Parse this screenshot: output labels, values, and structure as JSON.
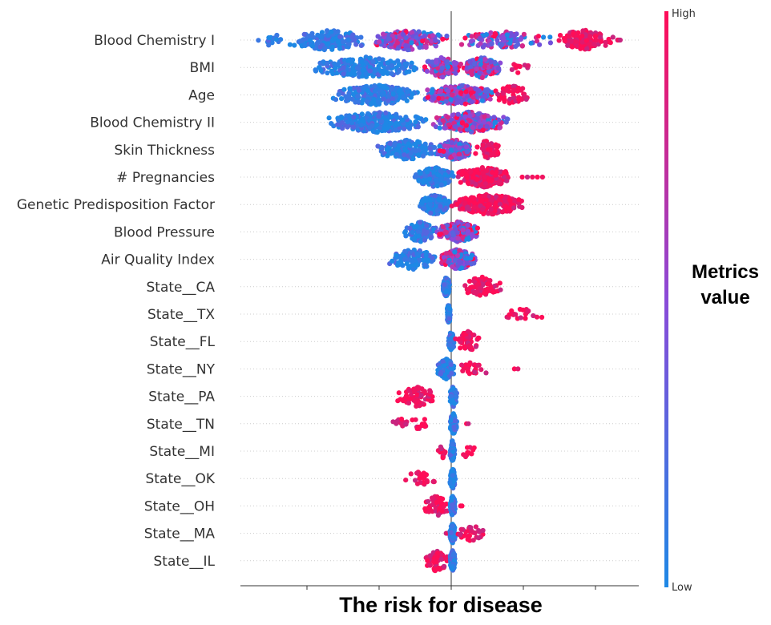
{
  "chart_data": {
    "type": "scatter",
    "subtype": "shap-beeswarm",
    "xlabel": "The risk for disease",
    "grid": "horizontal dotted rows",
    "zero_line": true,
    "colorbar": {
      "title": "Metrics value",
      "high_label": "High",
      "low_label": "Low",
      "low_color": "#1e88e5",
      "high_color": "#ff0d57"
    },
    "features": [
      {
        "name": "Blood Chemistry I",
        "clusters": [
          [
            -2.68,
            -2.3,
            "low",
            14
          ],
          [
            -2.3,
            -1.1,
            "low",
            150
          ],
          [
            -1.1,
            -0.05,
            "mid",
            220
          ],
          [
            0.0,
            1.4,
            "mid",
            120
          ],
          [
            1.4,
            2.3,
            "high",
            110
          ],
          [
            2.3,
            2.35,
            "high",
            4
          ]
        ]
      },
      {
        "name": "BMI",
        "clusters": [
          [
            -1.96,
            -0.4,
            "low",
            230
          ],
          [
            -0.4,
            0.15,
            "mid",
            110
          ],
          [
            0.15,
            0.7,
            "mid",
            170
          ],
          [
            0.8,
            1.1,
            "high",
            10
          ]
        ]
      },
      {
        "name": "Age",
        "clusters": [
          [
            -1.65,
            -0.4,
            "low",
            240
          ],
          [
            -0.4,
            0.6,
            "mid",
            250
          ],
          [
            0.6,
            1.1,
            "high",
            60
          ]
        ]
      },
      {
        "name": "Blood Chemistry II",
        "clusters": [
          [
            -1.73,
            -0.3,
            "low",
            260
          ],
          [
            -0.3,
            0.8,
            "mid",
            260
          ]
        ]
      },
      {
        "name": "Skin Thickness",
        "clusters": [
          [
            -1.02,
            -0.2,
            "low",
            140
          ],
          [
            -0.2,
            0.3,
            "mid",
            150
          ],
          [
            0.3,
            0.7,
            "high",
            40
          ]
        ]
      },
      {
        "name": "# Pregnancies",
        "clusters": [
          [
            -0.52,
            0.05,
            "low",
            180
          ],
          [
            0.05,
            0.85,
            "high",
            200
          ],
          [
            0.95,
            1.3,
            "high",
            5
          ]
        ]
      },
      {
        "name": "Genetic Predisposition Factor",
        "clusters": [
          [
            -0.45,
            0.0,
            "low",
            190
          ],
          [
            0.0,
            1.05,
            "high",
            230
          ]
        ]
      },
      {
        "name": "Blood Pressure",
        "clusters": [
          [
            -0.67,
            -0.2,
            "low",
            100
          ],
          [
            -0.2,
            0.4,
            "mid",
            230
          ]
        ]
      },
      {
        "name": "Air Quality Index",
        "clusters": [
          [
            -0.88,
            -0.15,
            "low",
            110
          ],
          [
            -0.15,
            0.35,
            "mid",
            230
          ]
        ]
      },
      {
        "name": "State__CA",
        "clusters": [
          [
            -0.12,
            -0.02,
            "low",
            110
          ],
          [
            0.1,
            0.72,
            "high",
            70
          ]
        ]
      },
      {
        "name": "State__TX",
        "clusters": [
          [
            -0.06,
            -0.01,
            "low",
            90
          ],
          [
            0.62,
            1.34,
            "high",
            22
          ]
        ]
      },
      {
        "name": "State__FL",
        "clusters": [
          [
            -0.04,
            0.04,
            "low",
            90
          ],
          [
            0.05,
            0.42,
            "high",
            50
          ]
        ]
      },
      {
        "name": "State__NY",
        "clusters": [
          [
            -0.2,
            0.05,
            "low",
            130
          ],
          [
            0.05,
            0.55,
            "high",
            25
          ],
          [
            0.85,
            0.95,
            "high",
            2
          ]
        ]
      },
      {
        "name": "State__PA",
        "clusters": [
          [
            -0.76,
            -0.18,
            "high",
            70
          ],
          [
            -0.02,
            0.08,
            "low",
            100
          ]
        ]
      },
      {
        "name": "State__TN",
        "clusters": [
          [
            -0.95,
            -0.15,
            "high",
            25
          ],
          [
            -0.02,
            0.08,
            "low",
            110
          ],
          [
            0.2,
            0.25,
            "high",
            2
          ]
        ]
      },
      {
        "name": "State__MI",
        "clusters": [
          [
            -0.22,
            -0.05,
            "high",
            12
          ],
          [
            -0.02,
            0.05,
            "low",
            100
          ],
          [
            0.1,
            0.35,
            "high",
            10
          ]
        ]
      },
      {
        "name": "State__OK",
        "clusters": [
          [
            -0.7,
            -0.15,
            "high",
            25
          ],
          [
            -0.02,
            0.06,
            "low",
            100
          ]
        ]
      },
      {
        "name": "State__OH",
        "clusters": [
          [
            -0.38,
            -0.03,
            "high",
            60
          ],
          [
            -0.02,
            0.06,
            "low",
            100
          ],
          [
            0.12,
            0.16,
            "high",
            2
          ]
        ]
      },
      {
        "name": "State__MA",
        "clusters": [
          [
            -0.08,
            0.0,
            "high",
            4
          ],
          [
            -0.02,
            0.06,
            "low",
            100
          ],
          [
            0.06,
            0.5,
            "high",
            30
          ]
        ]
      },
      {
        "name": "State__IL",
        "clusters": [
          [
            -0.4,
            -0.02,
            "high",
            60
          ],
          [
            -0.02,
            0.06,
            "low",
            100
          ]
        ]
      }
    ]
  }
}
